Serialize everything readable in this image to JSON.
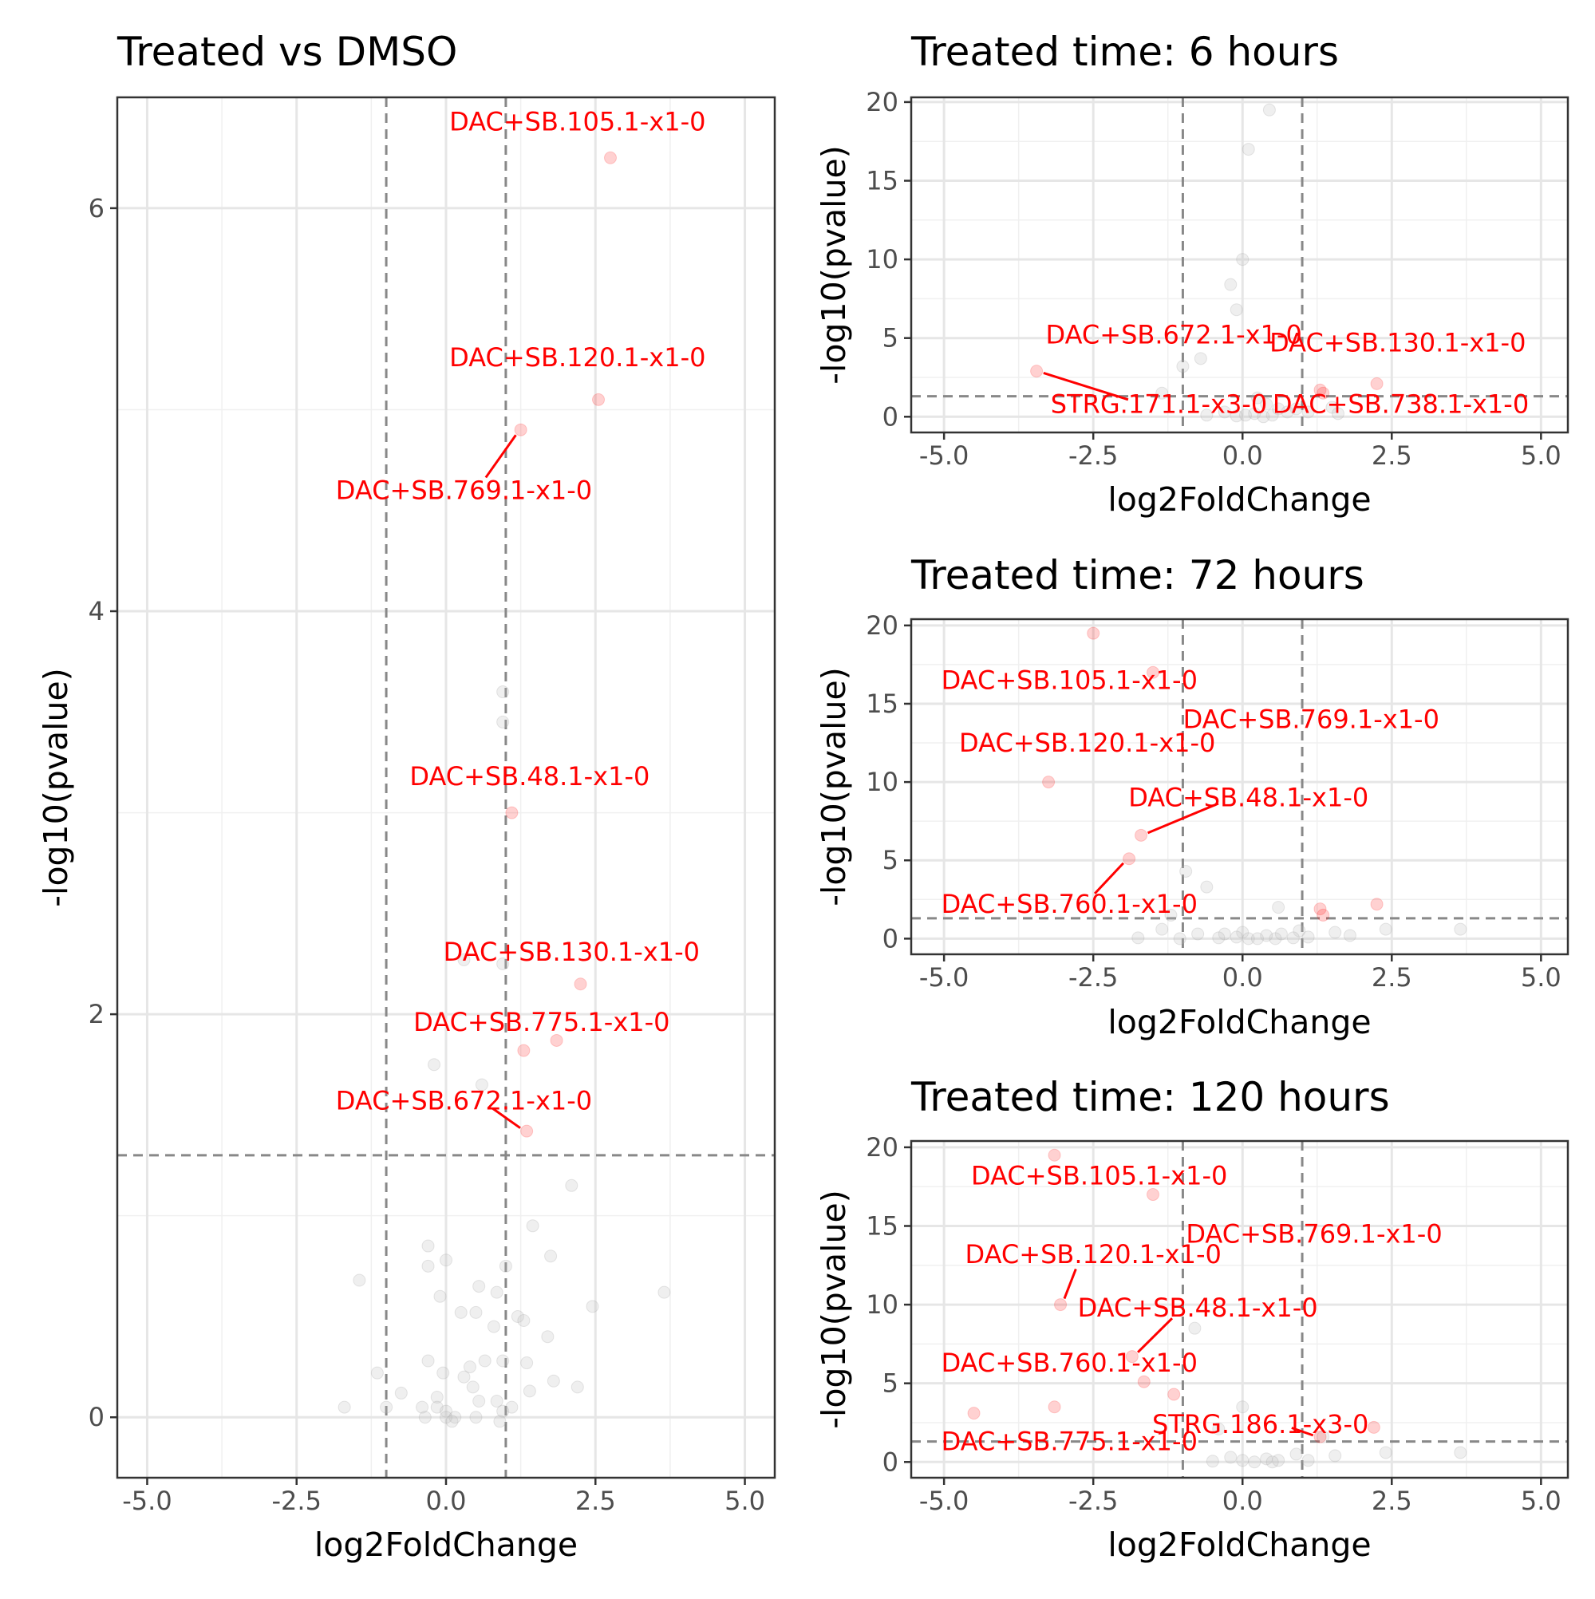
{
  "chart_data": [
    {
      "type": "scatter",
      "title": "Treated vs DMSO",
      "xlabel": "log2FoldChange",
      "ylabel": "-log10(pvalue)",
      "xlim": [
        -5.5,
        5.5
      ],
      "ylim": [
        -0.3,
        6.55
      ],
      "x_ticks": [
        -5,
        -2.5,
        0,
        2.5,
        5
      ],
      "x_tick_labels": [
        "-5.0",
        "-2.5",
        "0.0",
        "2.5",
        "5.0"
      ],
      "y_ticks": [
        0,
        2,
        4,
        6
      ],
      "y_tick_labels": [
        "0",
        "2",
        "4",
        "6"
      ],
      "grid": true,
      "legend": "none",
      "thresholds": {
        "log2fc": [
          -1,
          1
        ],
        "neg_log10_p": 1.3
      },
      "colors": {
        "significant": "#ff0000",
        "not_significant": "#bebebe",
        "threshold_line": "#888888"
      },
      "significant_points": [
        {
          "x": 2.75,
          "y": 6.25
        },
        {
          "x": 2.55,
          "y": 5.05
        },
        {
          "x": 1.25,
          "y": 4.9
        },
        {
          "x": 1.1,
          "y": 3.0
        },
        {
          "x": 2.25,
          "y": 2.15
        },
        {
          "x": 1.85,
          "y": 1.87
        },
        {
          "x": 1.3,
          "y": 1.82
        },
        {
          "x": 1.35,
          "y": 1.42
        }
      ],
      "other_points": [
        {
          "x": 0.95,
          "y": 3.6
        },
        {
          "x": 0.95,
          "y": 3.45
        },
        {
          "x": 0.3,
          "y": 2.27
        },
        {
          "x": 0.95,
          "y": 2.25
        },
        {
          "x": -0.2,
          "y": 1.75
        },
        {
          "x": 0.6,
          "y": 1.65
        },
        {
          "x": 2.1,
          "y": 1.15
        },
        {
          "x": 1.45,
          "y": 0.95
        },
        {
          "x": 1.75,
          "y": 0.8
        },
        {
          "x": -0.3,
          "y": 0.85
        },
        {
          "x": 0,
          "y": 0.78
        },
        {
          "x": -0.3,
          "y": 0.75
        },
        {
          "x": 1.0,
          "y": 0.75
        },
        {
          "x": -1.45,
          "y": 0.68
        },
        {
          "x": 3.65,
          "y": 0.62
        },
        {
          "x": 0.55,
          "y": 0.65
        },
        {
          "x": 0.85,
          "y": 0.62
        },
        {
          "x": -0.1,
          "y": 0.6
        },
        {
          "x": 2.45,
          "y": 0.55
        },
        {
          "x": 0.5,
          "y": 0.52
        },
        {
          "x": 0.25,
          "y": 0.52
        },
        {
          "x": 1.2,
          "y": 0.5
        },
        {
          "x": 1.3,
          "y": 0.48
        },
        {
          "x": 0.8,
          "y": 0.45
        },
        {
          "x": 1.7,
          "y": 0.4
        },
        {
          "x": 0.65,
          "y": 0.28
        },
        {
          "x": 0.95,
          "y": 0.28
        },
        {
          "x": -0.3,
          "y": 0.28
        },
        {
          "x": 1.35,
          "y": 0.27
        },
        {
          "x": 0.4,
          "y": 0.25
        },
        {
          "x": -1.15,
          "y": 0.22
        },
        {
          "x": -0.05,
          "y": 0.22
        },
        {
          "x": 0.3,
          "y": 0.2
        },
        {
          "x": 1.8,
          "y": 0.18
        },
        {
          "x": 0.45,
          "y": 0.15
        },
        {
          "x": 2.2,
          "y": 0.15
        },
        {
          "x": 1.4,
          "y": 0.13
        },
        {
          "x": -0.75,
          "y": 0.12
        },
        {
          "x": -0.15,
          "y": 0.1
        },
        {
          "x": 0.85,
          "y": 0.08
        },
        {
          "x": 0.55,
          "y": 0.08
        },
        {
          "x": -1.7,
          "y": 0.05
        },
        {
          "x": -1.0,
          "y": 0.05
        },
        {
          "x": -0.4,
          "y": 0.05
        },
        {
          "x": -0.15,
          "y": 0.05
        },
        {
          "x": 0.0,
          "y": 0.03
        },
        {
          "x": 1.1,
          "y": 0.05
        },
        {
          "x": 0.95,
          "y": 0.03
        },
        {
          "x": 0.5,
          "y": 0.0
        },
        {
          "x": 0.15,
          "y": 0.0
        },
        {
          "x": -0.35,
          "y": 0.0
        },
        {
          "x": 0.0,
          "y": 0.0
        },
        {
          "x": 0.1,
          "y": -0.02
        },
        {
          "x": 0.9,
          "y": -0.02
        }
      ],
      "labels": [
        {
          "text": "DAC+SB.105.1-x1-0",
          "x": 2.2,
          "y": 6.43
        },
        {
          "text": "DAC+SB.120.1-x1-0",
          "x": 2.2,
          "y": 5.26
        },
        {
          "text": "DAC+SB.769.1-x1-0",
          "x": 0.3,
          "y": 4.6
        },
        {
          "text": "DAC+SB.48.1-x1-0",
          "x": 1.4,
          "y": 3.18
        },
        {
          "text": "DAC+SB.130.1-x1-0",
          "x": 2.1,
          "y": 2.31
        },
        {
          "text": "DAC+SB.775.1-x1-0",
          "x": 1.6,
          "y": 1.96
        },
        {
          "text": "DAC+SB.672.1-x1-0",
          "x": 0.3,
          "y": 1.57
        }
      ]
    },
    {
      "type": "scatter",
      "title": "Treated time: 6 hours",
      "xlabel": "log2FoldChange",
      "ylabel": "-log10(pvalue)",
      "xlim": [
        -5.55,
        5.45
      ],
      "ylim": [
        -1.0,
        20.3
      ],
      "x_ticks": [
        -5,
        -2.5,
        0,
        2.5,
        5
      ],
      "x_tick_labels": [
        "-5.0",
        "-2.5",
        "0.0",
        "2.5",
        "5.0"
      ],
      "y_ticks": [
        0,
        5,
        10,
        15,
        20
      ],
      "y_tick_labels": [
        "0",
        "5",
        "10",
        "15",
        "20"
      ],
      "grid": true,
      "legend": "none",
      "thresholds": {
        "log2fc": [
          -1,
          1
        ],
        "neg_log10_p": 1.3
      },
      "colors": {
        "significant": "#ff0000",
        "not_significant": "#bebebe",
        "threshold_line": "#888888"
      },
      "significant_points": [
        {
          "x": -3.45,
          "y": 2.9
        },
        {
          "x": 2.25,
          "y": 2.1
        },
        {
          "x": 1.3,
          "y": 1.7
        },
        {
          "x": 1.35,
          "y": 1.5
        }
      ],
      "other_points": [
        {
          "x": 0.45,
          "y": 19.5
        },
        {
          "x": 0.1,
          "y": 17.0
        },
        {
          "x": 0.0,
          "y": 10.0
        },
        {
          "x": -0.2,
          "y": 8.4
        },
        {
          "x": -0.1,
          "y": 6.8
        },
        {
          "x": -0.7,
          "y": 3.7
        },
        {
          "x": -1.0,
          "y": 3.2
        },
        {
          "x": -1.35,
          "y": 1.5
        },
        {
          "x": 0.25,
          "y": 1.2
        },
        {
          "x": 0.4,
          "y": 0.8
        },
        {
          "x": 0.6,
          "y": 0.5
        },
        {
          "x": 0.9,
          "y": 0.5
        },
        {
          "x": 1.5,
          "y": 0.6
        },
        {
          "x": 0.75,
          "y": 0.3
        },
        {
          "x": -0.3,
          "y": 0.3
        },
        {
          "x": 0.2,
          "y": 0.2
        },
        {
          "x": 1.1,
          "y": 0.3
        },
        {
          "x": -0.6,
          "y": 0.1
        },
        {
          "x": 0.05,
          "y": 0.1
        },
        {
          "x": 0.5,
          "y": 0.1
        },
        {
          "x": -0.1,
          "y": 0.05
        },
        {
          "x": 1.6,
          "y": 0.2
        },
        {
          "x": 0.35,
          "y": 0.0
        }
      ],
      "labels": [
        {
          "text": "DAC+SB.672.1-x1-0",
          "x": -1.15,
          "y": 5.2
        },
        {
          "text": "DAC+SB.130.1-x1-0",
          "x": 2.6,
          "y": 4.7
        },
        {
          "text": "STRG.171.1-x3-0",
          "x": -1.4,
          "y": 0.8
        },
        {
          "text": "DAC+SB.738.1-x1-0",
          "x": 2.65,
          "y": 0.8
        }
      ]
    },
    {
      "type": "scatter",
      "title": "Treated time: 72 hours",
      "xlabel": "log2FoldChange",
      "ylabel": "-log10(pvalue)",
      "xlim": [
        -5.55,
        5.45
      ],
      "ylim": [
        -1.0,
        20.4
      ],
      "x_ticks": [
        -5,
        -2.5,
        0,
        2.5,
        5
      ],
      "x_tick_labels": [
        "-5.0",
        "-2.5",
        "0.0",
        "2.5",
        "5.0"
      ],
      "y_ticks": [
        0,
        5,
        10,
        15,
        20
      ],
      "y_tick_labels": [
        "0",
        "5",
        "10",
        "15",
        "20"
      ],
      "grid": true,
      "legend": "none",
      "thresholds": {
        "log2fc": [
          -1,
          1
        ],
        "neg_log10_p": 1.3
      },
      "colors": {
        "significant": "#ff0000",
        "not_significant": "#bebebe",
        "threshold_line": "#888888"
      },
      "significant_points": [
        {
          "x": -2.5,
          "y": 19.5
        },
        {
          "x": -1.5,
          "y": 17.0
        },
        {
          "x": -3.25,
          "y": 10.0
        },
        {
          "x": -1.7,
          "y": 6.6
        },
        {
          "x": -1.9,
          "y": 5.1
        },
        {
          "x": 2.25,
          "y": 2.2
        },
        {
          "x": 1.3,
          "y": 1.9
        },
        {
          "x": 1.35,
          "y": 1.5
        }
      ],
      "other_points": [
        {
          "x": -0.95,
          "y": 4.3
        },
        {
          "x": -0.6,
          "y": 3.3
        },
        {
          "x": 0.6,
          "y": 2.0
        },
        {
          "x": -1.2,
          "y": 1.5
        },
        {
          "x": 2.4,
          "y": 0.6
        },
        {
          "x": 3.65,
          "y": 0.6
        },
        {
          "x": 1.55,
          "y": 0.4
        },
        {
          "x": 0.95,
          "y": 0.5
        },
        {
          "x": -1.35,
          "y": 0.6
        },
        {
          "x": -0.75,
          "y": 0.3
        },
        {
          "x": 1.8,
          "y": 0.2
        },
        {
          "x": -0.3,
          "y": 0.3
        },
        {
          "x": 0.0,
          "y": 0.4
        },
        {
          "x": 0.4,
          "y": 0.2
        },
        {
          "x": 0.65,
          "y": 0.3
        },
        {
          "x": -0.1,
          "y": 0.1
        },
        {
          "x": -0.4,
          "y": 0.05
        },
        {
          "x": 0.1,
          "y": 0.0
        },
        {
          "x": 0.55,
          "y": 0.0
        },
        {
          "x": -1.75,
          "y": 0.05
        },
        {
          "x": 1.1,
          "y": 0.1
        },
        {
          "x": 0.85,
          "y": 0.05
        },
        {
          "x": -1.05,
          "y": 0.0
        },
        {
          "x": 0.25,
          "y": 0.0
        }
      ],
      "labels": [
        {
          "text": "DAC+SB.105.1-x1-0",
          "x": -2.9,
          "y": 16.5
        },
        {
          "text": "DAC+SB.769.1-x1-0",
          "x": 1.15,
          "y": 14.0
        },
        {
          "text": "DAC+SB.120.1-x1-0",
          "x": -2.6,
          "y": 12.5
        },
        {
          "text": "DAC+SB.48.1-x1-0",
          "x": 0.1,
          "y": 9.0
        },
        {
          "text": "DAC+SB.760.1-x1-0",
          "x": -2.9,
          "y": 2.2
        }
      ]
    },
    {
      "type": "scatter",
      "title": "Treated time: 120 hours",
      "xlabel": "log2FoldChange",
      "ylabel": "-log10(pvalue)",
      "xlim": [
        -5.55,
        5.45
      ],
      "ylim": [
        -1.0,
        20.4
      ],
      "x_ticks": [
        -5,
        -2.5,
        0,
        2.5,
        5
      ],
      "x_tick_labels": [
        "-5.0",
        "-2.5",
        "0.0",
        "2.5",
        "5.0"
      ],
      "y_ticks": [
        0,
        5,
        10,
        15,
        20
      ],
      "y_tick_labels": [
        "0",
        "5",
        "10",
        "15",
        "20"
      ],
      "grid": true,
      "legend": "none",
      "thresholds": {
        "log2fc": [
          -1,
          1
        ],
        "neg_log10_p": 1.3
      },
      "colors": {
        "significant": "#ff0000",
        "not_significant": "#bebebe",
        "threshold_line": "#888888"
      },
      "significant_points": [
        {
          "x": -3.15,
          "y": 19.5
        },
        {
          "x": -1.5,
          "y": 17.0
        },
        {
          "x": -3.05,
          "y": 10.0
        },
        {
          "x": -1.85,
          "y": 6.7
        },
        {
          "x": -1.65,
          "y": 5.1
        },
        {
          "x": -1.15,
          "y": 4.3
        },
        {
          "x": -3.15,
          "y": 3.5
        },
        {
          "x": -4.5,
          "y": 3.1
        },
        {
          "x": 2.2,
          "y": 2.2
        },
        {
          "x": 1.3,
          "y": 1.6
        }
      ],
      "other_points": [
        {
          "x": -0.8,
          "y": 8.5
        },
        {
          "x": 0.0,
          "y": 3.5
        },
        {
          "x": -0.4,
          "y": 2.1
        },
        {
          "x": 1.35,
          "y": 1.6
        },
        {
          "x": 2.4,
          "y": 0.6
        },
        {
          "x": 3.65,
          "y": 0.6
        },
        {
          "x": 1.55,
          "y": 0.4
        },
        {
          "x": 0.9,
          "y": 0.5
        },
        {
          "x": -0.2,
          "y": 0.3
        },
        {
          "x": 0.4,
          "y": 0.2
        },
        {
          "x": 0.0,
          "y": 0.1
        },
        {
          "x": 0.6,
          "y": 0.1
        },
        {
          "x": -0.5,
          "y": 0.05
        },
        {
          "x": 0.5,
          "y": 0.0
        },
        {
          "x": 1.1,
          "y": 0.1
        },
        {
          "x": 0.2,
          "y": 0.0
        }
      ],
      "labels": [
        {
          "text": "DAC+SB.105.1-x1-0",
          "x": -2.4,
          "y": 18.2
        },
        {
          "text": "DAC+SB.769.1-x1-0",
          "x": 1.2,
          "y": 14.5
        },
        {
          "text": "DAC+SB.120.1-x1-0",
          "x": -2.5,
          "y": 13.2
        },
        {
          "text": "DAC+SB.48.1-x1-0",
          "x": -0.75,
          "y": 9.8
        },
        {
          "text": "DAC+SB.760.1-x1-0",
          "x": -2.9,
          "y": 6.3
        },
        {
          "text": "STRG.186.1-x3-0",
          "x": 0.3,
          "y": 2.4
        },
        {
          "text": "DAC+SB.775.1-x1-0",
          "x": -2.9,
          "y": 1.3
        }
      ]
    }
  ]
}
